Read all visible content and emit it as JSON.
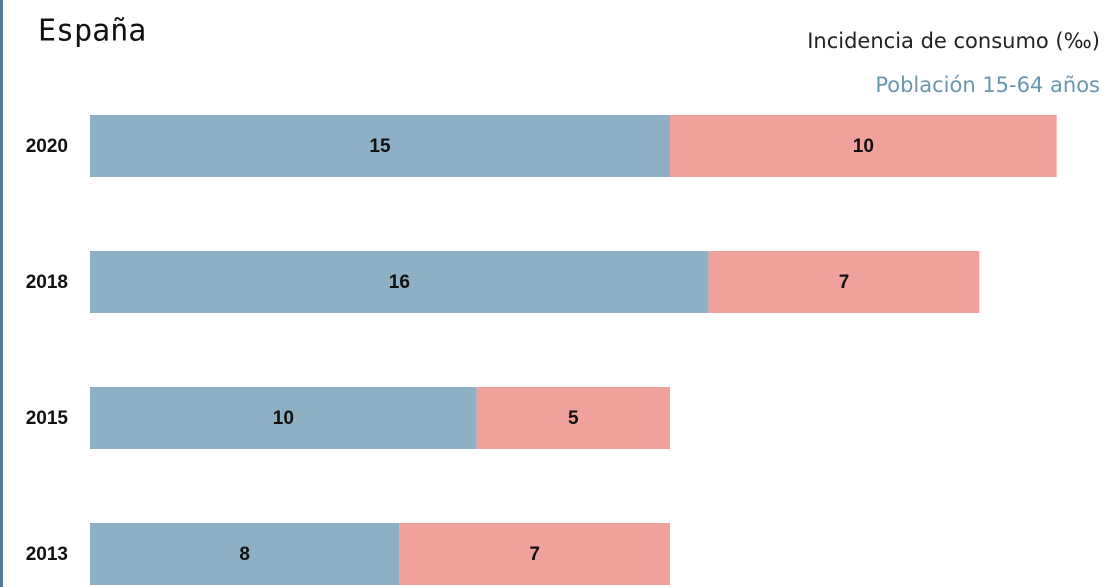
{
  "chart_data": {
    "type": "stacked-bar-horizontal",
    "title": "España",
    "subtitle": "Incidencia de consumo (‰)",
    "note": "Población 15-64 años",
    "categories": [
      "2020",
      "2018",
      "2015",
      "2013"
    ],
    "series": [
      {
        "color": "#8db0c4",
        "values": [
          15,
          16,
          10,
          8
        ]
      },
      {
        "color": "#f0a19c",
        "values": [
          10,
          7,
          5,
          7
        ]
      }
    ]
  }
}
